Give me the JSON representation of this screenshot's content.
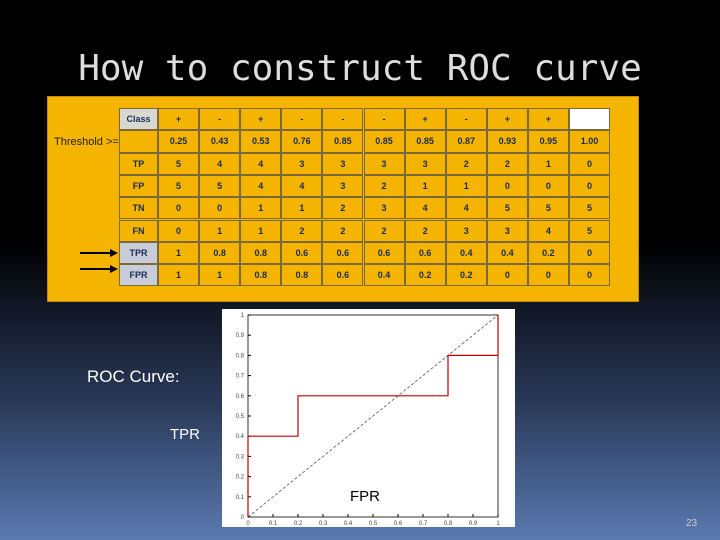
{
  "title": "How to construct ROC curve",
  "table": {
    "header": [
      "Class",
      "+",
      "-",
      "+",
      "-",
      "-",
      "-",
      "+",
      "-",
      "+",
      "+"
    ],
    "threshold_label": "Threshold >=",
    "thresholds": [
      "0.25",
      "0.43",
      "0.53",
      "0.76",
      "0.85",
      "0.85",
      "0.85",
      "0.87",
      "0.93",
      "0.95",
      "1.00"
    ],
    "rows": [
      {
        "label": "TP",
        "values": [
          5,
          4,
          4,
          3,
          3,
          3,
          3,
          2,
          2,
          1,
          0
        ]
      },
      {
        "label": "FP",
        "values": [
          5,
          5,
          4,
          4,
          3,
          2,
          1,
          1,
          0,
          0,
          0
        ]
      },
      {
        "label": "TN",
        "values": [
          0,
          0,
          1,
          1,
          2,
          3,
          4,
          4,
          5,
          5,
          5
        ]
      },
      {
        "label": "FN",
        "values": [
          0,
          1,
          1,
          2,
          2,
          2,
          2,
          3,
          3,
          4,
          5
        ]
      },
      {
        "label": "TPR",
        "values": [
          1,
          0.8,
          0.8,
          0.6,
          0.6,
          0.6,
          0.6,
          0.4,
          0.4,
          0.2,
          0
        ]
      },
      {
        "label": "FPR",
        "values": [
          1,
          1,
          0.8,
          0.8,
          0.6,
          0.4,
          0.2,
          0.2,
          0,
          0,
          0
        ]
      }
    ]
  },
  "caption": "ROC Curve:",
  "chart": {
    "type": "line",
    "ylabel": "TPR",
    "xlabel": "FPR",
    "color": "#c00000",
    "xlim": [
      0,
      1
    ],
    "ylim": [
      0,
      1
    ],
    "xticks": [
      0,
      0.1,
      0.2,
      0.3,
      0.4,
      0.5,
      0.6,
      0.7,
      0.8,
      0.9,
      1
    ],
    "yticks": [
      0,
      0.1,
      0.2,
      0.3,
      0.4,
      0.5,
      0.6,
      0.7,
      0.8,
      0.9,
      1
    ]
  },
  "page_number": "23"
}
